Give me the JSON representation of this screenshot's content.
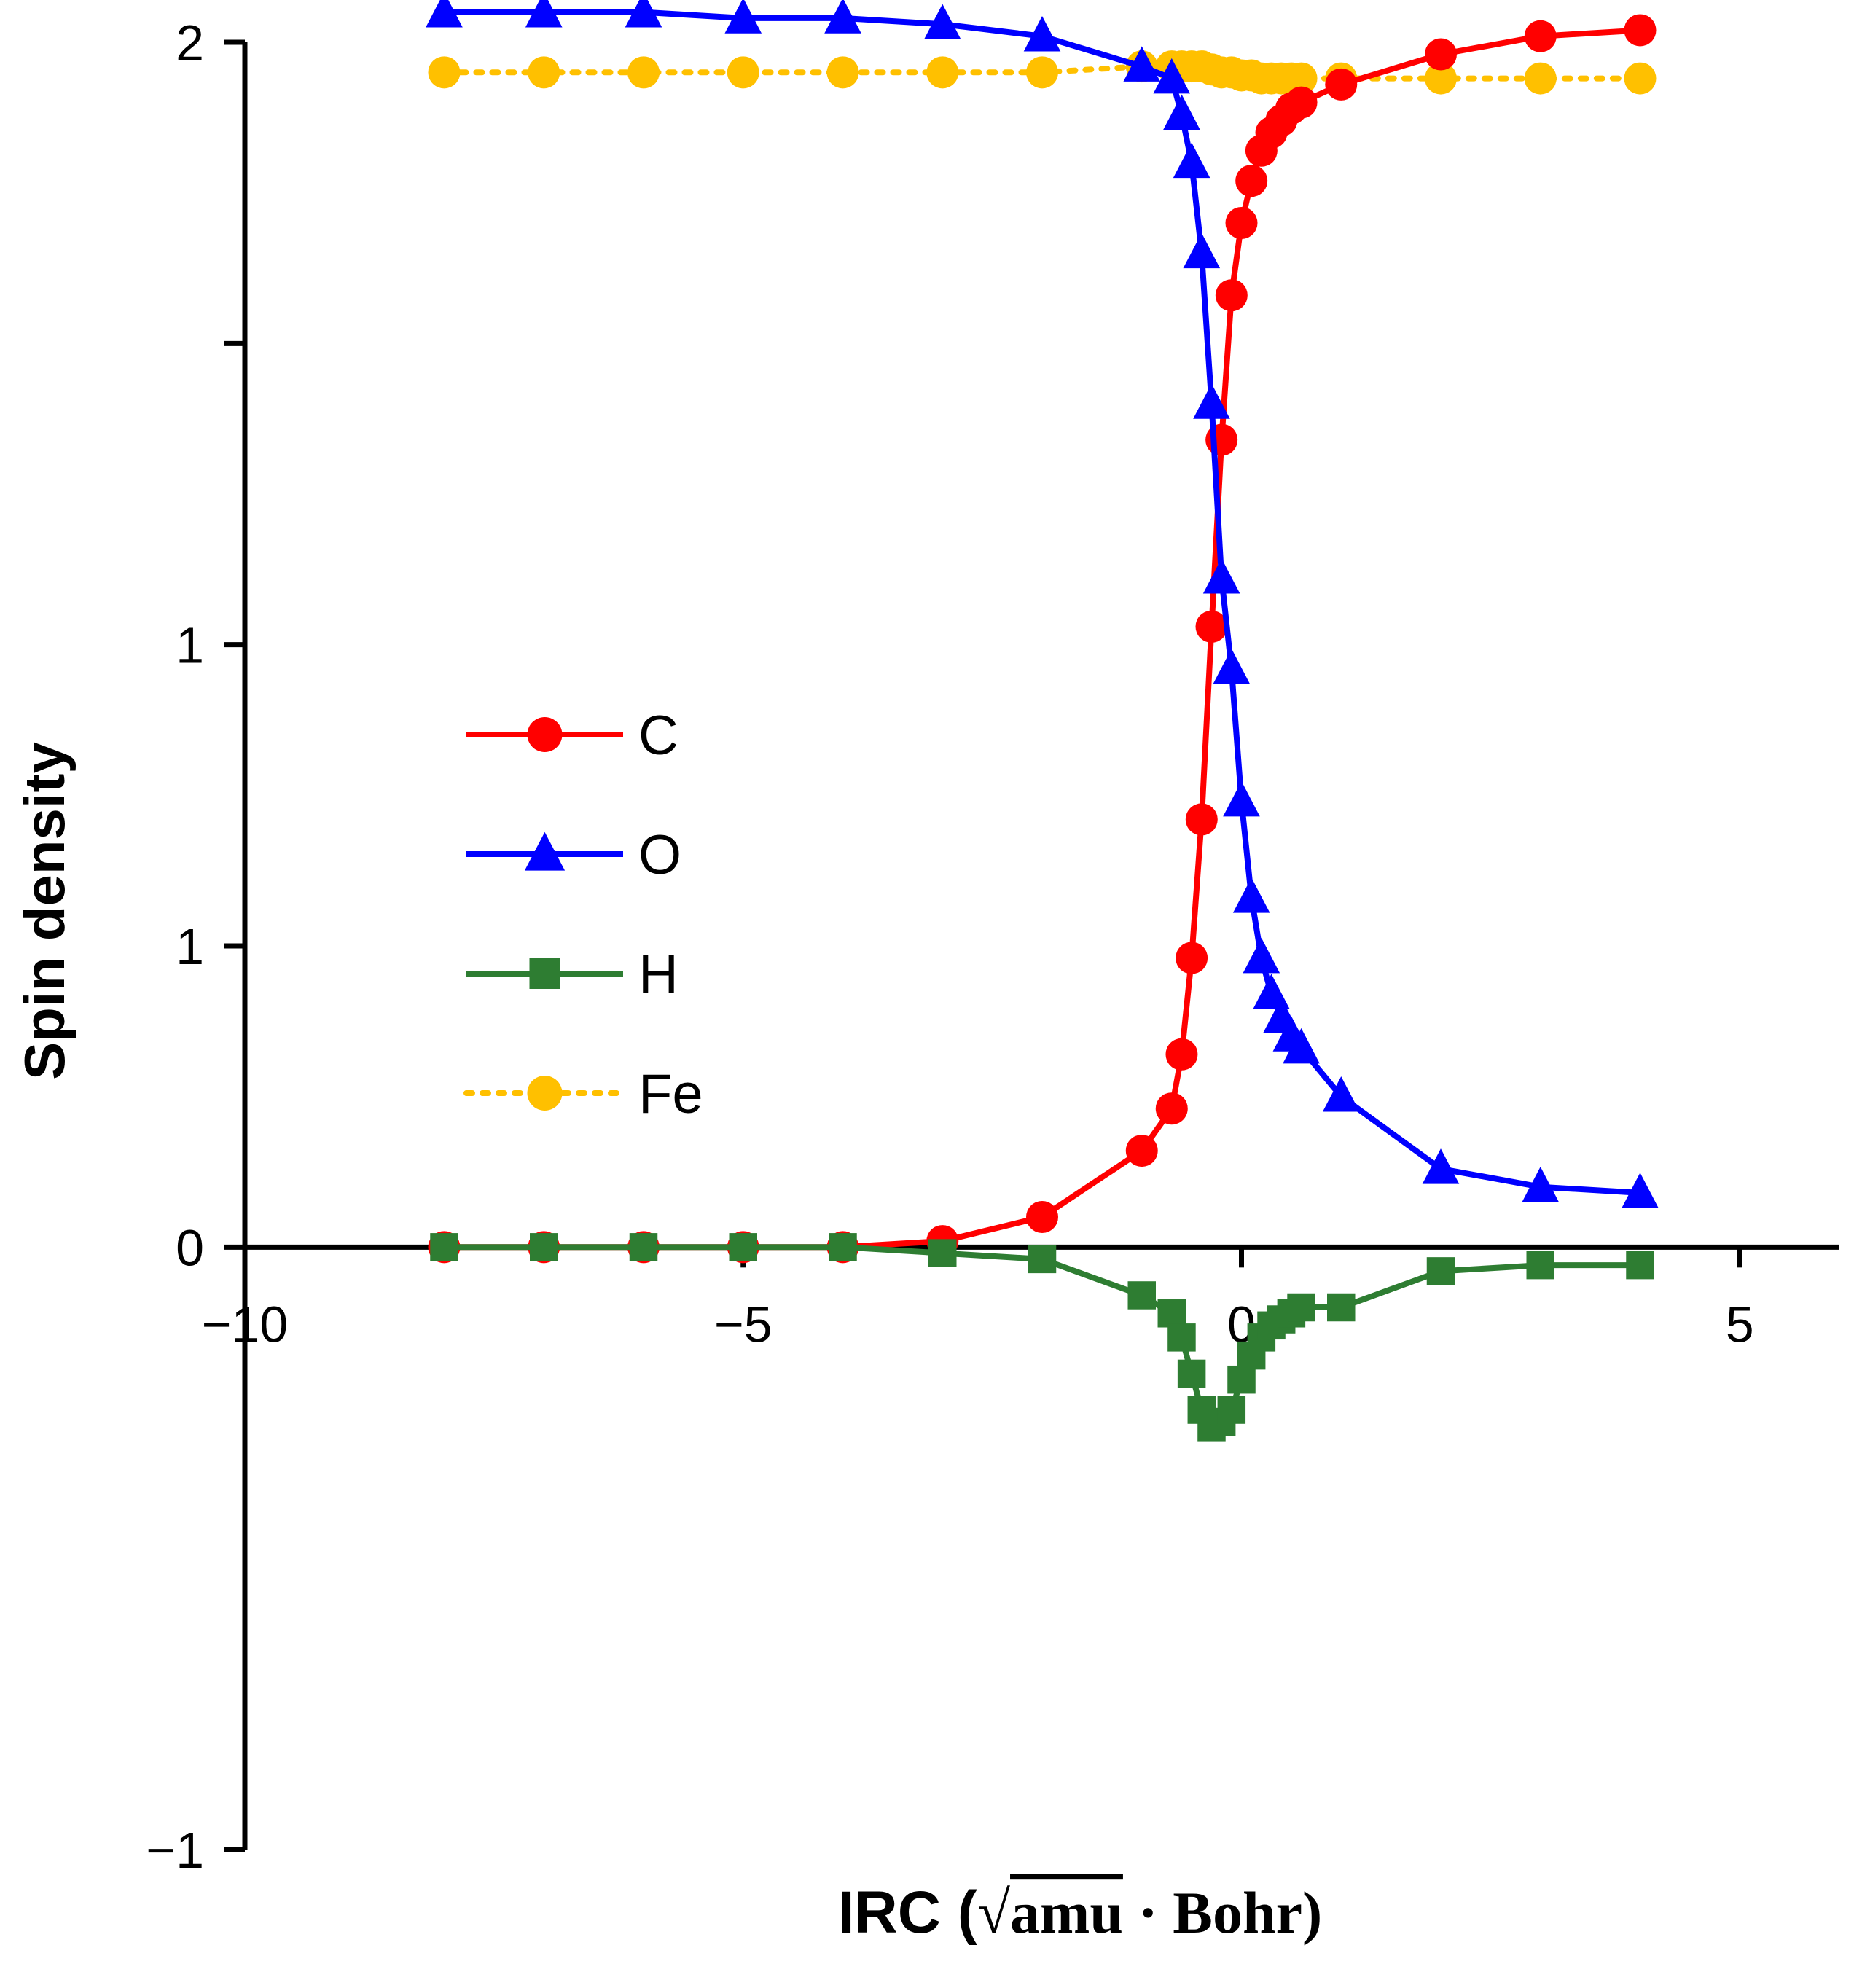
{
  "chart_data": {
    "type": "line",
    "title": "",
    "xlabel": "IRC (√amu · Bohr)",
    "xlabel_parts": {
      "prefix": "IRC (",
      "sqrt": "√",
      "radicand": "amu",
      "suffix": " · Bohr)"
    },
    "ylabel": "Spin density",
    "xlim": [
      -10,
      6
    ],
    "ylim": [
      -1,
      2
    ],
    "x_ticks": [
      -10,
      -5,
      0,
      5
    ],
    "x_tick_labels": [
      "−10",
      "−5",
      "0",
      "5"
    ],
    "y_ticks": [
      -1,
      0,
      0.5,
      1,
      1.5,
      2
    ],
    "y_tick_labels": [
      "−1",
      "0",
      "1",
      "1",
      "",
      "2"
    ],
    "y_label_ticks": [
      -1,
      0,
      0.5,
      1,
      2
    ],
    "y_label_texts": [
      "−1",
      "0",
      "1",
      "1",
      "2"
    ],
    "legend_position": "left-middle",
    "series": [
      {
        "name": "C",
        "color": "#ff0000",
        "marker": "circle",
        "line": "solid",
        "x": [
          -8,
          -7,
          -6,
          -5,
          -4,
          -3,
          -2,
          -1,
          -0.7,
          -0.6,
          -0.5,
          -0.4,
          -0.3,
          -0.2,
          -0.1,
          0,
          0.1,
          0.2,
          0.3,
          0.4,
          0.5,
          0.6,
          1,
          2,
          3,
          4
        ],
        "y": [
          0,
          0,
          0,
          0,
          0,
          0.01,
          0.05,
          0.16,
          0.23,
          0.32,
          0.48,
          0.71,
          1.03,
          1.34,
          1.58,
          1.7,
          1.77,
          1.82,
          1.85,
          1.87,
          1.89,
          1.9,
          1.93,
          1.98,
          2.01,
          2.02
        ]
      },
      {
        "name": "O",
        "color": "#0000ff",
        "marker": "triangle",
        "line": "solid",
        "x": [
          -8,
          -7,
          -6,
          -5,
          -4,
          -3,
          -2,
          -1,
          -0.7,
          -0.6,
          -0.5,
          -0.4,
          -0.3,
          -0.2,
          -0.1,
          0,
          0.1,
          0.2,
          0.3,
          0.4,
          0.5,
          0.6,
          1,
          2,
          3,
          4
        ],
        "y": [
          2.05,
          2.05,
          2.05,
          2.04,
          2.04,
          2.03,
          2.01,
          1.96,
          1.94,
          1.88,
          1.8,
          1.65,
          1.4,
          1.11,
          0.96,
          0.74,
          0.58,
          0.48,
          0.42,
          0.38,
          0.35,
          0.33,
          0.25,
          0.13,
          0.1,
          0.09
        ]
      },
      {
        "name": "H",
        "color": "#2e7d32",
        "marker": "square",
        "line": "solid",
        "x": [
          -8,
          -7,
          -6,
          -5,
          -4,
          -3,
          -2,
          -1,
          -0.7,
          -0.6,
          -0.5,
          -0.4,
          -0.3,
          -0.2,
          -0.1,
          0,
          0.1,
          0.2,
          0.3,
          0.4,
          0.5,
          0.6,
          1,
          2,
          3,
          4
        ],
        "y": [
          0,
          0,
          0,
          0,
          0,
          -0.01,
          -0.02,
          -0.08,
          -0.11,
          -0.15,
          -0.21,
          -0.27,
          -0.3,
          -0.29,
          -0.27,
          -0.22,
          -0.18,
          -0.15,
          -0.13,
          -0.12,
          -0.11,
          -0.1,
          -0.1,
          -0.04,
          -0.03,
          -0.03
        ]
      },
      {
        "name": "Fe",
        "color": "#ffc000",
        "marker": "circle",
        "line": "dotted",
        "x": [
          -8,
          -7,
          -6,
          -5,
          -4,
          -3,
          -2,
          -1,
          -0.7,
          -0.6,
          -0.5,
          -0.4,
          -0.3,
          -0.2,
          -0.1,
          0,
          0.1,
          0.2,
          0.3,
          0.4,
          0.5,
          0.6,
          1,
          2,
          3,
          4
        ],
        "y": [
          1.95,
          1.95,
          1.95,
          1.95,
          1.95,
          1.95,
          1.95,
          1.96,
          1.96,
          1.96,
          1.96,
          1.96,
          1.955,
          1.95,
          1.95,
          1.945,
          1.945,
          1.94,
          1.94,
          1.94,
          1.94,
          1.94,
          1.94,
          1.94,
          1.94,
          1.94
        ]
      }
    ]
  }
}
